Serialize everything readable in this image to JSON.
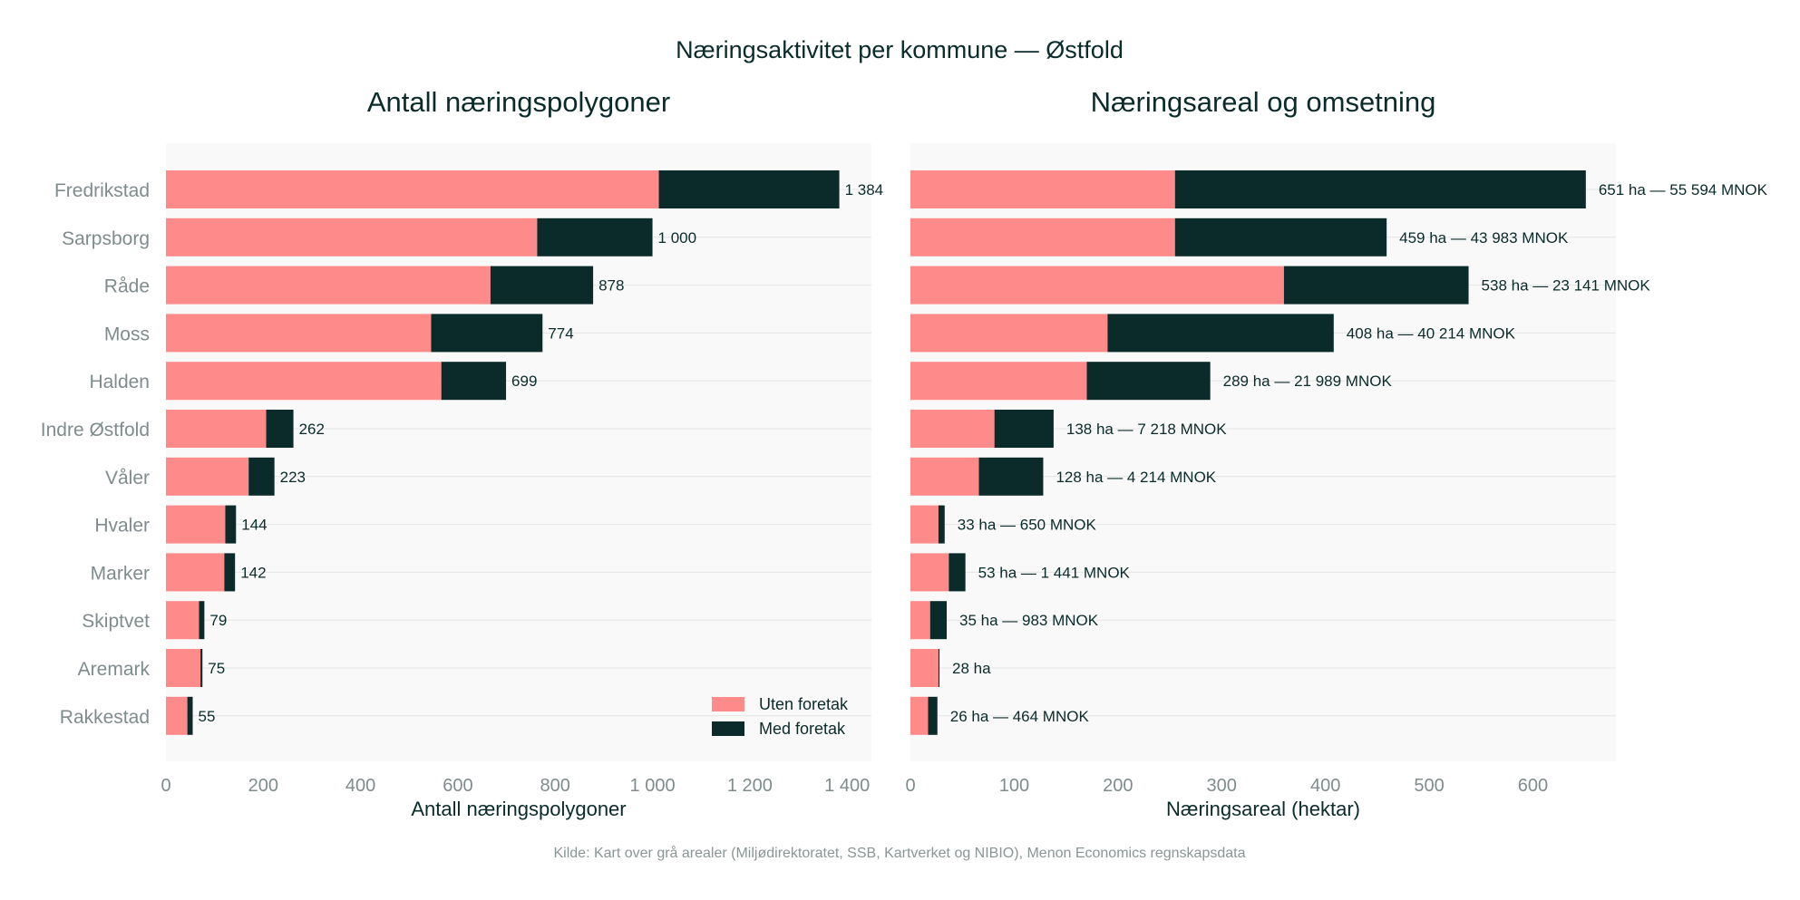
{
  "title": "Næringsaktivitet per kommune — Østfold",
  "source": "Kilde: Kart over grå arealer (Miljødirektoratet, SSB, Kartverket og NIBIO), Menon Economics regnskapsdata",
  "colors": {
    "uten": "#ff8a8a",
    "med": "#0b2b2b",
    "panel_bg": "#f9f9f9",
    "grid": "#e6e6e6",
    "text": "#0b2b2b",
    "muted": "#7f8c8d"
  },
  "legend": [
    {
      "label": "Uten foretak",
      "color": "#ff8a8a"
    },
    {
      "label": "Med foretak",
      "color": "#0b2b2b"
    }
  ],
  "chart_data": [
    {
      "type": "bar",
      "orientation": "horizontal",
      "stacked": true,
      "title": "Antall næringspolygoner",
      "xlabel": "Antall næringspolygoner",
      "ylabel": "",
      "xlim": [
        0,
        1450
      ],
      "xticks": [
        0,
        200,
        400,
        600,
        800,
        1000,
        1200,
        1400
      ],
      "xtick_labels": [
        "0",
        "200",
        "400",
        "600",
        "800",
        "1 000",
        "1 200",
        "1 400"
      ],
      "legend_position": "bottom-right",
      "categories": [
        "Fredrikstad",
        "Sarpsborg",
        "Råde",
        "Moss",
        "Halden",
        "Indre Østfold",
        "Våler",
        "Hvaler",
        "Marker",
        "Skiptvet",
        "Aremark",
        "Rakkestad"
      ],
      "series": [
        {
          "name": "Uten foretak",
          "values": [
            1013,
            763,
            667,
            545,
            566,
            206,
            170,
            122,
            120,
            68,
            71,
            44
          ]
        },
        {
          "name": "Med foretak",
          "values": [
            371,
            237,
            211,
            229,
            133,
            56,
            53,
            22,
            22,
            11,
            4,
            11
          ]
        }
      ],
      "data_labels": [
        "1 384",
        "1 000",
        "878",
        "774",
        "699",
        "262",
        "223",
        "144",
        "142",
        "79",
        "75",
        "55"
      ]
    },
    {
      "type": "bar",
      "orientation": "horizontal",
      "stacked": true,
      "title": "Næringsareal og omsetning",
      "xlabel": "Næringsareal (hektar)",
      "ylabel": "",
      "xlim": [
        0,
        680
      ],
      "xticks": [
        0,
        100,
        200,
        300,
        400,
        500,
        600
      ],
      "xtick_labels": [
        "0",
        "100",
        "200",
        "300",
        "400",
        "500",
        "600"
      ],
      "categories": [
        "Fredrikstad",
        "Sarpsborg",
        "Råde",
        "Moss",
        "Halden",
        "Indre Østfold",
        "Våler",
        "Hvaler",
        "Marker",
        "Skiptvet",
        "Aremark",
        "Rakkestad"
      ],
      "series": [
        {
          "name": "Uten foretak",
          "values": [
            255,
            255,
            360,
            190,
            170,
            81,
            66,
            27,
            37,
            19,
            27,
            17
          ]
        },
        {
          "name": "Med foretak",
          "values": [
            396,
            204,
            178,
            218,
            119,
            57,
            62,
            6,
            16,
            16,
            1,
            9
          ]
        }
      ],
      "data_labels": [
        "651 ha — 55 594 MNOK",
        "459 ha — 43 983 MNOK",
        "538 ha — 23 141 MNOK",
        "408 ha — 40 214 MNOK",
        "289 ha — 21 989 MNOK",
        "138 ha — 7 218 MNOK",
        "128 ha — 4 214 MNOK",
        "33 ha — 650 MNOK",
        "53 ha — 1 441 MNOK",
        "35 ha — 983 MNOK",
        "28 ha",
        "26 ha — 464 MNOK"
      ]
    }
  ]
}
